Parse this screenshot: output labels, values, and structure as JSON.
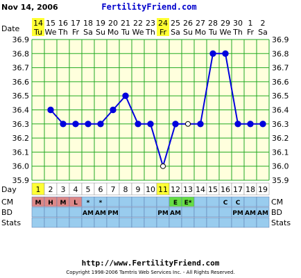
{
  "header": {
    "date": "Nov 14, 2006",
    "site": "FertilityFriend.com",
    "date_label": "Date"
  },
  "chart_data": {
    "type": "line",
    "dates": [
      "14",
      "15",
      "16",
      "17",
      "18",
      "19",
      "20",
      "21",
      "22",
      "23",
      "24",
      "25",
      "26",
      "27",
      "28",
      "29",
      "30",
      "1",
      "2"
    ],
    "weekdays": [
      "Tu",
      "We",
      "Th",
      "Fr",
      "Sa",
      "Su",
      "Mo",
      "Tu",
      "We",
      "Th",
      "Fr",
      "Sa",
      "Su",
      "Mo",
      "Tu",
      "We",
      "Th",
      "Fr",
      "Sa"
    ],
    "cycle_days": [
      "1",
      "2",
      "3",
      "4",
      "5",
      "6",
      "7",
      "8",
      "9",
      "10",
      "11",
      "12",
      "13",
      "14",
      "15",
      "16",
      "17",
      "18",
      "19"
    ],
    "temperatures": [
      null,
      36.4,
      36.3,
      36.3,
      36.3,
      36.3,
      36.4,
      36.5,
      36.3,
      36.3,
      36.0,
      36.3,
      36.3,
      36.3,
      36.8,
      36.8,
      36.3,
      36.3,
      36.3
    ],
    "open_points": [
      10,
      12
    ],
    "y_ticks": [
      "36.9",
      "36.8",
      "36.7",
      "36.6",
      "36.5",
      "36.4",
      "36.3",
      "36.2",
      "36.1",
      "36.0",
      "35.9"
    ],
    "ylim": [
      35.9,
      36.9
    ],
    "grid": true,
    "line_color": "#0000dd",
    "highlighted_day_color": "#ffff33",
    "highlighted_days": [
      0,
      10
    ],
    "day_label": "Day",
    "rows": {
      "cm": {
        "label": "CM",
        "cells": [
          "M",
          "H",
          "M",
          "L",
          "*",
          "*",
          "",
          "",
          "",
          "",
          "",
          "E",
          "E*",
          "",
          "",
          "C",
          "C",
          "",
          ""
        ],
        "colors": [
          "#dd8888",
          "#dd8888",
          "#dd8888",
          "#dd8888",
          "",
          "",
          "",
          "",
          "",
          "",
          "",
          "#66dd44",
          "#66dd44",
          "",
          "",
          "",
          "",
          "",
          ""
        ]
      },
      "bd": {
        "label": "BD",
        "cells": [
          "",
          "",
          "",
          "",
          "AM",
          "AM",
          "PM",
          "",
          "",
          "",
          "PM",
          "AM",
          "",
          "",
          "",
          "",
          "PM",
          "AM",
          "AM"
        ]
      },
      "stats": {
        "label": "Stats",
        "cells": [
          "",
          "",
          "",
          "",
          "",
          "",
          "",
          "",
          "",
          "",
          "",
          "",
          "",
          "",
          "",
          "",
          "",
          "",
          ""
        ]
      }
    },
    "row_bg_color": "#99ccee"
  },
  "footer": {
    "url": "http://www.FertilityFriend.com",
    "copyright": "Copyright 1998-2006 Tamtris Web Services Inc. - All Rights Reserved."
  }
}
